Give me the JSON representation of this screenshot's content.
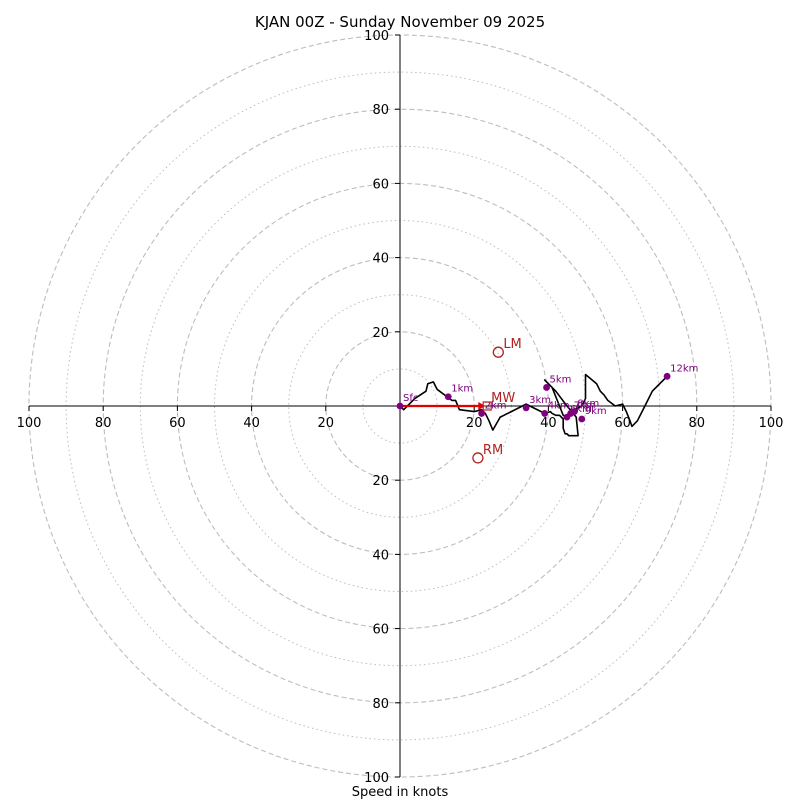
{
  "chart_data": {
    "type": "hodograph",
    "title": "KJAN 00Z - Sunday November 09 2025",
    "xlabel": "Speed in knots",
    "units": "knots",
    "max_speed": 100,
    "ring_major": [
      20,
      40,
      60,
      80,
      100
    ],
    "ring_minor": [
      10,
      30,
      50,
      70,
      90
    ],
    "x_ticks": [
      {
        "value": -100,
        "label": "100"
      },
      {
        "value": -80,
        "label": "80"
      },
      {
        "value": -60,
        "label": "60"
      },
      {
        "value": -40,
        "label": "40"
      },
      {
        "value": -20,
        "label": "20"
      },
      {
        "value": 20,
        "label": "20"
      },
      {
        "value": 40,
        "label": "40"
      },
      {
        "value": 60,
        "label": "60"
      },
      {
        "value": 80,
        "label": "80"
      },
      {
        "value": 100,
        "label": "100"
      }
    ],
    "y_ticks": [
      {
        "value": 100,
        "label": "100"
      },
      {
        "value": 80,
        "label": "80"
      },
      {
        "value": 60,
        "label": "60"
      },
      {
        "value": 40,
        "label": "40"
      },
      {
        "value": 20,
        "label": "20"
      },
      {
        "value": -20,
        "label": "20"
      },
      {
        "value": -40,
        "label": "40"
      },
      {
        "value": -60,
        "label": "60"
      },
      {
        "value": -80,
        "label": "80"
      },
      {
        "value": -100,
        "label": "100"
      }
    ],
    "trace": [
      [
        0,
        0
      ],
      [
        1,
        -1
      ],
      [
        4,
        2
      ],
      [
        7,
        4
      ],
      [
        7.5,
        6
      ],
      [
        9,
        6.5
      ],
      [
        9.5,
        5.5
      ],
      [
        10,
        4.5
      ],
      [
        12,
        3
      ],
      [
        14,
        1.5
      ],
      [
        15,
        1.5
      ],
      [
        16,
        -1
      ],
      [
        20,
        -1.5
      ],
      [
        22,
        -1
      ],
      [
        23,
        -2
      ],
      [
        24,
        -4
      ],
      [
        25,
        -6.5
      ],
      [
        27,
        -3
      ],
      [
        28,
        -2.5
      ],
      [
        30,
        -1.5
      ],
      [
        33,
        0
      ],
      [
        34,
        0.5
      ],
      [
        36,
        -0.5
      ],
      [
        39,
        -2
      ],
      [
        40.5,
        -1.5
      ],
      [
        41,
        -2
      ],
      [
        42,
        -2.5
      ],
      [
        43,
        -2.5
      ],
      [
        44,
        -3.5
      ],
      [
        44,
        -6
      ],
      [
        44.5,
        -7.5
      ],
      [
        45,
        -7.5
      ],
      [
        45.5,
        -8
      ],
      [
        48,
        -8
      ],
      [
        47.5,
        -3
      ],
      [
        45,
        0
      ],
      [
        42,
        4
      ],
      [
        39,
        7
      ],
      [
        40,
        6
      ],
      [
        41,
        5
      ],
      [
        43,
        0
      ],
      [
        44,
        -2.5
      ],
      [
        45,
        -3
      ],
      [
        46,
        -2.5
      ],
      [
        47,
        -1
      ],
      [
        49,
        0
      ],
      [
        50,
        2
      ],
      [
        50,
        5
      ],
      [
        50,
        8.5
      ],
      [
        53,
        6
      ],
      [
        54,
        4
      ],
      [
        55,
        3
      ],
      [
        56,
        1.5
      ],
      [
        58,
        0
      ],
      [
        60,
        0.5
      ],
      [
        61,
        -1.5
      ],
      [
        62,
        -4
      ],
      [
        62.5,
        -5.5
      ],
      [
        64,
        -4
      ],
      [
        66,
        0
      ],
      [
        68,
        4
      ],
      [
        72,
        8
      ],
      [
        72,
        8
      ]
    ],
    "height_markers": [
      {
        "label": "Sfc",
        "u": 0,
        "v": 0
      },
      {
        "label": "1km",
        "u": 13,
        "v": 2.5
      },
      {
        "label": "2km",
        "u": 22,
        "v": -2
      },
      {
        "label": "3km",
        "u": 34,
        "v": -0.5
      },
      {
        "label": "4km",
        "u": 39,
        "v": -2
      },
      {
        "label": "5km",
        "u": 39.5,
        "v": 5
      },
      {
        "label": "6km",
        "u": 45,
        "v": -3
      },
      {
        "label": "7km",
        "u": 46,
        "v": -2
      },
      {
        "label": "8km",
        "u": 47,
        "v": -1.5
      },
      {
        "label": "9km",
        "u": 49,
        "v": -3.5
      },
      {
        "label": "12km",
        "u": 72,
        "v": 8
      }
    ],
    "storm_motion": [
      {
        "label": "LM",
        "u": 26.5,
        "v": 14.5
      },
      {
        "label": "MW",
        "u": 23.5,
        "v": 0
      },
      {
        "label": "RM",
        "u": 21,
        "v": -14
      }
    ],
    "shear_vector": {
      "from": [
        0,
        0
      ],
      "to": [
        23,
        0
      ]
    },
    "colors": {
      "grid": "#bdbdbd",
      "trace": "#000000",
      "markers": "#800080",
      "storm": "#b22222",
      "shear": "#e00000"
    }
  }
}
